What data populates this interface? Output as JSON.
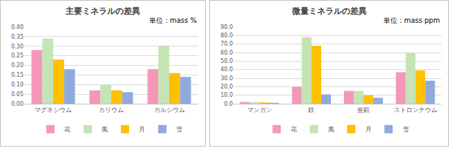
{
  "chart_data": [
    {
      "type": "bar",
      "title": "主要ミネラルの差異",
      "annotations": [
        "単位：mass %"
      ],
      "categories": [
        "マグネシウム",
        "カリウム",
        "カルシウム"
      ],
      "series": [
        {
          "name": "花",
          "color": "#f598b8",
          "values": [
            0.28,
            0.07,
            0.18
          ]
        },
        {
          "name": "風",
          "color": "#c4e4b6",
          "values": [
            0.34,
            0.1,
            0.3
          ]
        },
        {
          "name": "月",
          "color": "#ffc000",
          "values": [
            0.23,
            0.07,
            0.16
          ]
        },
        {
          "name": "雪",
          "color": "#8faadc",
          "values": [
            0.18,
            0.06,
            0.14
          ]
        }
      ],
      "ylim": [
        0,
        0.4
      ],
      "yticks": [
        {
          "value": 0,
          "label": "0.00"
        },
        {
          "value": 0.05,
          "label": "0.05"
        },
        {
          "value": 0.1,
          "label": "0.10"
        },
        {
          "value": 0.15,
          "label": "0.15"
        },
        {
          "value": 0.2,
          "label": "0.20"
        },
        {
          "value": 0.25,
          "label": "0.25"
        },
        {
          "value": 0.3,
          "label": "0.30"
        },
        {
          "value": 0.35,
          "label": "0.35"
        },
        {
          "value": 0.4,
          "label": "0.40"
        }
      ],
      "grid": true,
      "legend": "bottom"
    },
    {
      "type": "bar",
      "title": "微量ミネラルの差異",
      "annotations": [
        "単位：mass ppm"
      ],
      "categories": [
        "マンガン",
        "鉄",
        "亜鉛",
        "ストロンチウム"
      ],
      "series": [
        {
          "name": "花",
          "color": "#f598b8",
          "values": [
            2,
            20,
            15,
            37
          ]
        },
        {
          "name": "風",
          "color": "#c4e4b6",
          "values": [
            2,
            78,
            15,
            60
          ]
        },
        {
          "name": "月",
          "color": "#ffc000",
          "values": [
            1.5,
            68,
            10,
            39
          ]
        },
        {
          "name": "雪",
          "color": "#8faadc",
          "values": [
            1,
            11,
            7,
            27
          ]
        }
      ],
      "ylim": [
        0,
        90
      ],
      "yticks": [
        {
          "value": 0,
          "label": "0.0"
        },
        {
          "value": 10,
          "label": "10.0"
        },
        {
          "value": 20,
          "label": "20.0"
        },
        {
          "value": 30,
          "label": "30.0"
        },
        {
          "value": 40,
          "label": "40.0"
        },
        {
          "value": 50,
          "label": "50.0"
        },
        {
          "value": 60,
          "label": "60.0"
        },
        {
          "value": 70,
          "label": "70.0"
        },
        {
          "value": 80,
          "label": "80.0"
        },
        {
          "value": 90,
          "label": "90.0"
        }
      ],
      "grid": true,
      "legend": "bottom"
    }
  ]
}
